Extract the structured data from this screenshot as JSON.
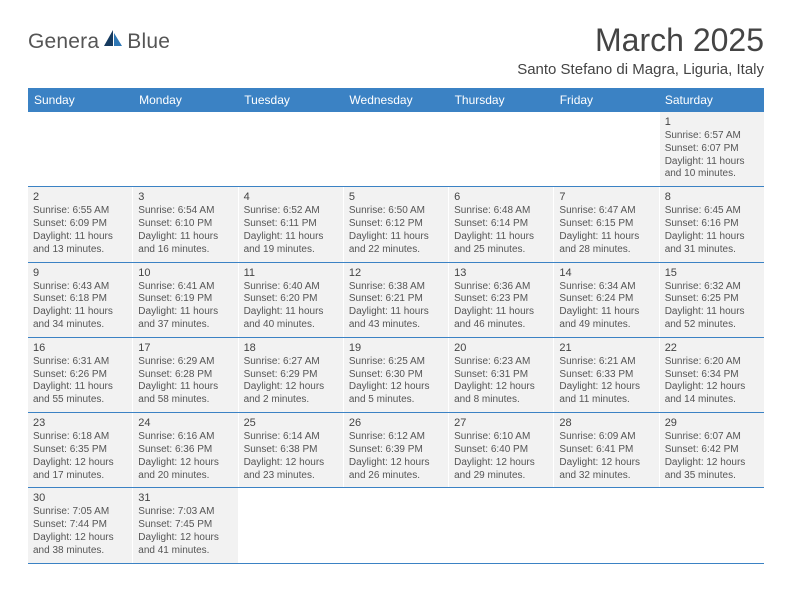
{
  "logo": {
    "text_a": "Genera",
    "text_b": "Blue",
    "accent": "#2e77b5",
    "dark": "#163a5f"
  },
  "title": "March 2025",
  "location": "Santo Stefano di Magra, Liguria, Italy",
  "colors": {
    "header_bg": "#3b82c4",
    "header_text": "#ffffff",
    "cell_bg": "#f2f2f2",
    "row_border": "#3b82c4",
    "text": "#555555"
  },
  "day_headers": [
    "Sunday",
    "Monday",
    "Tuesday",
    "Wednesday",
    "Thursday",
    "Friday",
    "Saturday"
  ],
  "weeks": [
    [
      null,
      null,
      null,
      null,
      null,
      null,
      {
        "num": "1",
        "sunrise": "Sunrise: 6:57 AM",
        "sunset": "Sunset: 6:07 PM",
        "daylight": "Daylight: 11 hours and 10 minutes."
      }
    ],
    [
      {
        "num": "2",
        "sunrise": "Sunrise: 6:55 AM",
        "sunset": "Sunset: 6:09 PM",
        "daylight": "Daylight: 11 hours and 13 minutes."
      },
      {
        "num": "3",
        "sunrise": "Sunrise: 6:54 AM",
        "sunset": "Sunset: 6:10 PM",
        "daylight": "Daylight: 11 hours and 16 minutes."
      },
      {
        "num": "4",
        "sunrise": "Sunrise: 6:52 AM",
        "sunset": "Sunset: 6:11 PM",
        "daylight": "Daylight: 11 hours and 19 minutes."
      },
      {
        "num": "5",
        "sunrise": "Sunrise: 6:50 AM",
        "sunset": "Sunset: 6:12 PM",
        "daylight": "Daylight: 11 hours and 22 minutes."
      },
      {
        "num": "6",
        "sunrise": "Sunrise: 6:48 AM",
        "sunset": "Sunset: 6:14 PM",
        "daylight": "Daylight: 11 hours and 25 minutes."
      },
      {
        "num": "7",
        "sunrise": "Sunrise: 6:47 AM",
        "sunset": "Sunset: 6:15 PM",
        "daylight": "Daylight: 11 hours and 28 minutes."
      },
      {
        "num": "8",
        "sunrise": "Sunrise: 6:45 AM",
        "sunset": "Sunset: 6:16 PM",
        "daylight": "Daylight: 11 hours and 31 minutes."
      }
    ],
    [
      {
        "num": "9",
        "sunrise": "Sunrise: 6:43 AM",
        "sunset": "Sunset: 6:18 PM",
        "daylight": "Daylight: 11 hours and 34 minutes."
      },
      {
        "num": "10",
        "sunrise": "Sunrise: 6:41 AM",
        "sunset": "Sunset: 6:19 PM",
        "daylight": "Daylight: 11 hours and 37 minutes."
      },
      {
        "num": "11",
        "sunrise": "Sunrise: 6:40 AM",
        "sunset": "Sunset: 6:20 PM",
        "daylight": "Daylight: 11 hours and 40 minutes."
      },
      {
        "num": "12",
        "sunrise": "Sunrise: 6:38 AM",
        "sunset": "Sunset: 6:21 PM",
        "daylight": "Daylight: 11 hours and 43 minutes."
      },
      {
        "num": "13",
        "sunrise": "Sunrise: 6:36 AM",
        "sunset": "Sunset: 6:23 PM",
        "daylight": "Daylight: 11 hours and 46 minutes."
      },
      {
        "num": "14",
        "sunrise": "Sunrise: 6:34 AM",
        "sunset": "Sunset: 6:24 PM",
        "daylight": "Daylight: 11 hours and 49 minutes."
      },
      {
        "num": "15",
        "sunrise": "Sunrise: 6:32 AM",
        "sunset": "Sunset: 6:25 PM",
        "daylight": "Daylight: 11 hours and 52 minutes."
      }
    ],
    [
      {
        "num": "16",
        "sunrise": "Sunrise: 6:31 AM",
        "sunset": "Sunset: 6:26 PM",
        "daylight": "Daylight: 11 hours and 55 minutes."
      },
      {
        "num": "17",
        "sunrise": "Sunrise: 6:29 AM",
        "sunset": "Sunset: 6:28 PM",
        "daylight": "Daylight: 11 hours and 58 minutes."
      },
      {
        "num": "18",
        "sunrise": "Sunrise: 6:27 AM",
        "sunset": "Sunset: 6:29 PM",
        "daylight": "Daylight: 12 hours and 2 minutes."
      },
      {
        "num": "19",
        "sunrise": "Sunrise: 6:25 AM",
        "sunset": "Sunset: 6:30 PM",
        "daylight": "Daylight: 12 hours and 5 minutes."
      },
      {
        "num": "20",
        "sunrise": "Sunrise: 6:23 AM",
        "sunset": "Sunset: 6:31 PM",
        "daylight": "Daylight: 12 hours and 8 minutes."
      },
      {
        "num": "21",
        "sunrise": "Sunrise: 6:21 AM",
        "sunset": "Sunset: 6:33 PM",
        "daylight": "Daylight: 12 hours and 11 minutes."
      },
      {
        "num": "22",
        "sunrise": "Sunrise: 6:20 AM",
        "sunset": "Sunset: 6:34 PM",
        "daylight": "Daylight: 12 hours and 14 minutes."
      }
    ],
    [
      {
        "num": "23",
        "sunrise": "Sunrise: 6:18 AM",
        "sunset": "Sunset: 6:35 PM",
        "daylight": "Daylight: 12 hours and 17 minutes."
      },
      {
        "num": "24",
        "sunrise": "Sunrise: 6:16 AM",
        "sunset": "Sunset: 6:36 PM",
        "daylight": "Daylight: 12 hours and 20 minutes."
      },
      {
        "num": "25",
        "sunrise": "Sunrise: 6:14 AM",
        "sunset": "Sunset: 6:38 PM",
        "daylight": "Daylight: 12 hours and 23 minutes."
      },
      {
        "num": "26",
        "sunrise": "Sunrise: 6:12 AM",
        "sunset": "Sunset: 6:39 PM",
        "daylight": "Daylight: 12 hours and 26 minutes."
      },
      {
        "num": "27",
        "sunrise": "Sunrise: 6:10 AM",
        "sunset": "Sunset: 6:40 PM",
        "daylight": "Daylight: 12 hours and 29 minutes."
      },
      {
        "num": "28",
        "sunrise": "Sunrise: 6:09 AM",
        "sunset": "Sunset: 6:41 PM",
        "daylight": "Daylight: 12 hours and 32 minutes."
      },
      {
        "num": "29",
        "sunrise": "Sunrise: 6:07 AM",
        "sunset": "Sunset: 6:42 PM",
        "daylight": "Daylight: 12 hours and 35 minutes."
      }
    ],
    [
      {
        "num": "30",
        "sunrise": "Sunrise: 7:05 AM",
        "sunset": "Sunset: 7:44 PM",
        "daylight": "Daylight: 12 hours and 38 minutes."
      },
      {
        "num": "31",
        "sunrise": "Sunrise: 7:03 AM",
        "sunset": "Sunset: 7:45 PM",
        "daylight": "Daylight: 12 hours and 41 minutes."
      },
      null,
      null,
      null,
      null,
      null
    ]
  ]
}
